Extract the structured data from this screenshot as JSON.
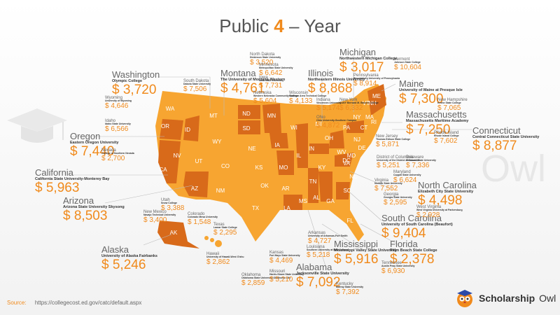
{
  "title": {
    "prefix": "Public",
    "number": "4",
    "suffix": "– Year"
  },
  "watermark": "Owl",
  "source": {
    "label": "Source:",
    "url": "https://collegecost.ed.gov/catc/default.aspx"
  },
  "brand": {
    "name1": "Scholarship",
    "name2": "Owl"
  },
  "colors": {
    "accent": "#f08a1c",
    "light_state": "#f7a531",
    "dark_state": "#d86a1a",
    "text": "#555555"
  },
  "state_abbrs": [
    "WA",
    "OR",
    "ID",
    "MT",
    "WY",
    "CA",
    "NV",
    "UT",
    "AZ",
    "CO",
    "NM",
    "ND",
    "SD",
    "NE",
    "KS",
    "OK",
    "TX",
    "MN",
    "IA",
    "MO",
    "AR",
    "LA",
    "WI",
    "IL",
    "MS",
    "MI",
    "IN",
    "KY",
    "TN",
    "AL",
    "OH",
    "GA",
    "FL",
    "WV",
    "VA",
    "SC",
    "NC",
    "PA",
    "NY",
    "VT",
    "NH",
    "ME",
    "MA",
    "RI",
    "CT",
    "NJ",
    "DE",
    "MD",
    "DC",
    "AK",
    "HI"
  ],
  "states": [
    {
      "name": "Washington",
      "school": "Olympic College",
      "amount": "$ 3,720"
    },
    {
      "name": "Montana",
      "school": "The University of Montana-Western",
      "amount": "$ 4,761"
    },
    {
      "name": "Illinois",
      "school": "Northeastern Illinois University",
      "amount": "$ 8,868"
    },
    {
      "name": "Michigan",
      "school": "Northwestern Michigan College",
      "amount": "$ 3,017"
    },
    {
      "name": "Maine",
      "school": "University of Maine at Presque Isle",
      "amount": "$ 7,300"
    },
    {
      "name": "Massachusetts",
      "school": "Massachusetts Maritime Academy",
      "amount": "$ 7,250"
    },
    {
      "name": "Connecticut",
      "school": "Central Connecticut State University",
      "amount": "$ 8,877"
    },
    {
      "name": "Oregon",
      "school": "Eastern Oregon University",
      "amount": "$ 7,440"
    },
    {
      "name": "California",
      "school": "California State University-Monterey Bay",
      "amount": "$ 5,963"
    },
    {
      "name": "Arizona",
      "school": "Arizona State University Skysong",
      "amount": "$ 8,503"
    },
    {
      "name": "Alaska",
      "school": "University of Alaska Fairbanks",
      "amount": "$ 5,246"
    },
    {
      "name": "North Carolina",
      "school": "Elizabeth City State University",
      "amount": "$ 4,498"
    },
    {
      "name": "South Carolina",
      "school": "University of South Carolina (Beaufort)",
      "amount": "$ 9,404"
    },
    {
      "name": "Mississippi",
      "school": "Mississippi Valley State University",
      "amount": "$ 5,916"
    },
    {
      "name": "Florida",
      "school": "Palm Beach State College",
      "amount": "$ 2,378"
    },
    {
      "name": "Alabama",
      "school": "Jacksonville State University",
      "amount": "$ 7,092"
    }
  ],
  "small_states": [
    {
      "name": "North Dakota",
      "school": "Dickinson State University",
      "amount": "$ 3,520"
    },
    {
      "name": "Minnesota",
      "school": "Metropolitan State University",
      "amount": "$ 6,642"
    },
    {
      "name": "Iowa",
      "school": "Iowa State University",
      "amount": "$ 7,731"
    },
    {
      "name": "South Dakota",
      "school": "Dakota State University",
      "amount": "$ 7,506"
    },
    {
      "name": "Nebraska",
      "school": "Western Nebraska Community College",
      "amount": "$ 5,604"
    },
    {
      "name": "Wisconsin",
      "school": "Madison Area Technical College",
      "amount": "$ 4,133"
    },
    {
      "name": "Indiana",
      "school": "Vincennes University",
      "amount": "$ 5,174"
    },
    {
      "name": "Pennsylvania",
      "school": "Bloomsburg University of Pennsylvania",
      "amount": "$ 8,914"
    },
    {
      "name": "Vermont",
      "school": "Johnson State College",
      "amount": "$ 10,604"
    },
    {
      "name": "New York",
      "school": "CUNY Bernard M. Baruch College",
      "amount": "$ 6,332"
    },
    {
      "name": "New Hampshire",
      "school": "Keene State College",
      "amount": "$ 7,065"
    },
    {
      "name": "Wyoming",
      "school": "University of Wyoming",
      "amount": "$ 4,646"
    },
    {
      "name": "Idaho",
      "school": "Idaho State University",
      "amount": "$ 6,566"
    },
    {
      "name": "Nevada",
      "school": "College of Southern Nevada",
      "amount": "$ 2,700"
    },
    {
      "name": "Ohio",
      "school": "Ohio University-Southern Campus",
      "amount": "$ 4,872"
    },
    {
      "name": "New Jersey",
      "school": "Thomas Edison State College",
      "amount": "$ 5,871"
    },
    {
      "name": "Rhode Island",
      "school": "Rhode Island College",
      "amount": "$ 7,602"
    },
    {
      "name": "District of Columbia",
      "school": "University of the District of Columbia",
      "amount": "$ 5,251"
    },
    {
      "name": "Delaware",
      "school": "Delaware State University",
      "amount": "$ 7,336"
    },
    {
      "name": "Maryland",
      "school": "Coppin State University",
      "amount": "$ 6,624"
    },
    {
      "name": "Virginia",
      "school": "Norfolk State University",
      "amount": "$ 7,552"
    },
    {
      "name": "Georgia",
      "school": "Georgia State University",
      "amount": "$ 2,595"
    },
    {
      "name": "West Virginia",
      "school": "West Virginia University at Parkersburg",
      "amount": "$ 2,928"
    },
    {
      "name": "Utah",
      "school": "Snow College",
      "amount": "$ 3,388"
    },
    {
      "name": "New Mexico",
      "school": "Navajo Technical University",
      "amount": "$ 3,400"
    },
    {
      "name": "Colorado",
      "school": "Colorado Mesa University",
      "amount": "$ 1,548"
    },
    {
      "name": "Texas",
      "school": "Lamar State College",
      "amount": "$ 2,295"
    },
    {
      "name": "Hawaii",
      "school": "University of Hawaii-West O'ahu",
      "amount": "$ 2,862"
    },
    {
      "name": "Kansas",
      "school": "Fort Hays State University",
      "amount": "$ 4,469"
    },
    {
      "name": "Oklahoma",
      "school": "Oklahoma State University-Oklahoma City",
      "amount": "$ 2,859"
    },
    {
      "name": "Missouri",
      "school": "Harris-Stowe State University",
      "amount": "$ 5,210"
    },
    {
      "name": "Arkansas",
      "school": "University of Arkansas-Fort Smith",
      "amount": "$ 4,727"
    },
    {
      "name": "Louisiana",
      "school": "Southern University at New Orleans",
      "amount": "$ 5,218"
    },
    {
      "name": "Tennessee",
      "school": "Austin Peay State University",
      "amount": "$ 6,930"
    },
    {
      "name": "Kentucky",
      "school": "Murray State University",
      "amount": "$ 7,392"
    }
  ]
}
